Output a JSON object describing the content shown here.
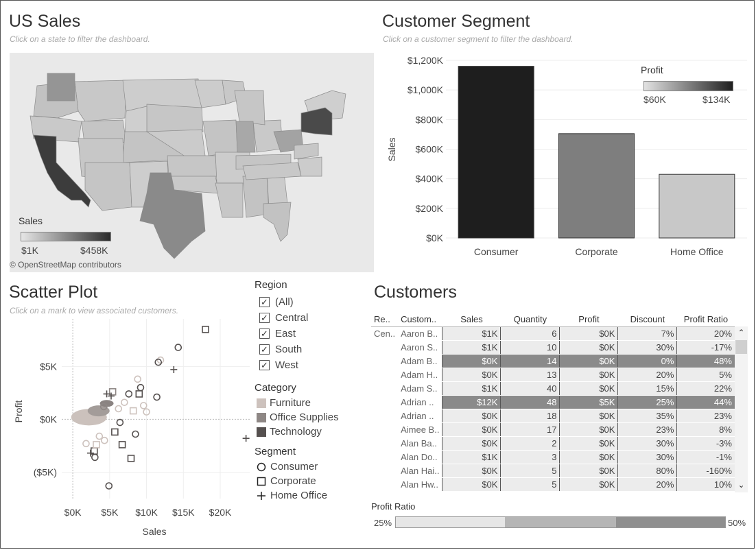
{
  "us_sales": {
    "title": "US Sales",
    "subtitle": "Click on a state to filter the dashboard.",
    "legend_title": "Sales",
    "legend_min": "$1K",
    "legend_max": "$458K",
    "attribution": "© OpenStreetMap contributors"
  },
  "segment": {
    "title": "Customer Segment",
    "subtitle": "Click on a customer segment to filter the dashboard.",
    "legend_title": "Profit",
    "legend_min": "$60K",
    "legend_max": "$134K"
  },
  "scatter": {
    "title": "Scatter Plot",
    "subtitle": "Click on a mark to view associated customers."
  },
  "filters": {
    "region_title": "Region",
    "regions": [
      "(All)",
      "Central",
      "East",
      "South",
      "West"
    ],
    "category_title": "Category",
    "categories": [
      {
        "label": "Furniture",
        "color": "#cdc2bd"
      },
      {
        "label": "Office Supplies",
        "color": "#8e8785"
      },
      {
        "label": "Technology",
        "color": "#55504f"
      }
    ],
    "segment_title": "Segment",
    "segments": [
      {
        "label": "Consumer",
        "shape": "circle"
      },
      {
        "label": "Corporate",
        "shape": "square"
      },
      {
        "label": "Home Office",
        "shape": "plus"
      }
    ]
  },
  "customers": {
    "title": "Customers",
    "headers": [
      "Re..",
      "Custom..",
      "Sales",
      "Quantity",
      "Profit",
      "Discount",
      "Profit Ratio"
    ],
    "region_cell": "Cen..",
    "rows": [
      {
        "name": "Aaron B..",
        "sales": "$1K",
        "qty": "6",
        "profit": "$0K",
        "disc": "7%",
        "ratio": "20%",
        "hl": false
      },
      {
        "name": "Aaron S..",
        "sales": "$1K",
        "qty": "10",
        "profit": "$0K",
        "disc": "30%",
        "ratio": "-17%",
        "hl": false
      },
      {
        "name": "Adam B..",
        "sales": "$0K",
        "qty": "14",
        "profit": "$0K",
        "disc": "0%",
        "ratio": "48%",
        "hl": true
      },
      {
        "name": "Adam H..",
        "sales": "$0K",
        "qty": "13",
        "profit": "$0K",
        "disc": "20%",
        "ratio": "5%",
        "hl": false
      },
      {
        "name": "Adam S..",
        "sales": "$1K",
        "qty": "40",
        "profit": "$0K",
        "disc": "15%",
        "ratio": "22%",
        "hl": false
      },
      {
        "name": "Adrian ..",
        "sales": "$12K",
        "qty": "48",
        "profit": "$5K",
        "disc": "25%",
        "ratio": "44%",
        "hl": true
      },
      {
        "name": "Adrian ..",
        "sales": "$0K",
        "qty": "18",
        "profit": "$0K",
        "disc": "35%",
        "ratio": "23%",
        "hl": false
      },
      {
        "name": "Aimee B..",
        "sales": "$0K",
        "qty": "17",
        "profit": "$0K",
        "disc": "23%",
        "ratio": "8%",
        "hl": false
      },
      {
        "name": "Alan Ba..",
        "sales": "$0K",
        "qty": "2",
        "profit": "$0K",
        "disc": "30%",
        "ratio": "-3%",
        "hl": false
      },
      {
        "name": "Alan Do..",
        "sales": "$1K",
        "qty": "3",
        "profit": "$0K",
        "disc": "30%",
        "ratio": "-1%",
        "hl": false
      },
      {
        "name": "Alan Hai..",
        "sales": "$0K",
        "qty": "5",
        "profit": "$0K",
        "disc": "80%",
        "ratio": "-160%",
        "hl": false
      },
      {
        "name": "Alan Hw..",
        "sales": "$0K",
        "qty": "5",
        "profit": "$0K",
        "disc": "20%",
        "ratio": "10%",
        "hl": false
      }
    ]
  },
  "profit_ratio": {
    "title": "Profit Ratio",
    "min_label": "25%",
    "max_label": "50%"
  },
  "chart_data": [
    {
      "type": "bar",
      "categories": [
        "Consumer",
        "Corporate",
        "Home Office"
      ],
      "values": [
        1160,
        705,
        430
      ],
      "value_units": "$K",
      "fill_by_profit": [
        134,
        92,
        60
      ],
      "ylabel": "Sales",
      "yticks": [
        "$0K",
        "$200K",
        "$400K",
        "$600K",
        "$800K",
        "$1,000K",
        "$1,200K"
      ],
      "ylim": [
        0,
        1200
      ],
      "grid": true,
      "legend": "top-right"
    },
    {
      "type": "scatter",
      "xlabel": "Sales",
      "ylabel": "Profit",
      "xticks": [
        "$0K",
        "$5K",
        "$10K",
        "$15K",
        "$20K"
      ],
      "yticks": [
        "($5K)",
        "$0K",
        "$5K"
      ],
      "xlim": [
        -1.5,
        24
      ],
      "ylim": [
        -7.5,
        9.5
      ],
      "points": [
        {
          "x": 18,
          "y": 8.5,
          "s": "square",
          "c": "Technology"
        },
        {
          "x": 14.3,
          "y": 6.8,
          "s": "circle",
          "c": "Technology"
        },
        {
          "x": 13.7,
          "y": 4.7,
          "s": "plus",
          "c": "Technology"
        },
        {
          "x": 11.9,
          "y": 5.6,
          "s": "circle",
          "c": "Furniture"
        },
        {
          "x": 11.6,
          "y": 5.4,
          "s": "circle",
          "c": "Technology"
        },
        {
          "x": 8.8,
          "y": 3.8,
          "s": "circle",
          "c": "Furniture"
        },
        {
          "x": 9.2,
          "y": 3.0,
          "s": "circle",
          "c": "Technology"
        },
        {
          "x": 9.0,
          "y": 2.4,
          "s": "square",
          "c": "Technology"
        },
        {
          "x": 7.6,
          "y": 2.4,
          "s": "circle",
          "c": "Technology"
        },
        {
          "x": 11.4,
          "y": 2.1,
          "s": "circle",
          "c": "Technology"
        },
        {
          "x": 9.6,
          "y": 1.3,
          "s": "circle",
          "c": "Furniture"
        },
        {
          "x": 10.0,
          "y": 0.7,
          "s": "circle",
          "c": "Furniture"
        },
        {
          "x": 8.2,
          "y": 0.8,
          "s": "square",
          "c": "Furniture"
        },
        {
          "x": 23.5,
          "y": -1.8,
          "s": "plus",
          "c": "Technology"
        },
        {
          "x": 8.5,
          "y": -1.4,
          "s": "circle",
          "c": "Technology"
        },
        {
          "x": 6.7,
          "y": -2.4,
          "s": "square",
          "c": "Technology"
        },
        {
          "x": 7.9,
          "y": -3.7,
          "s": "square",
          "c": "Technology"
        },
        {
          "x": 2.9,
          "y": -3.0,
          "s": "square",
          "c": "Technology"
        },
        {
          "x": 2.4,
          "y": -3.2,
          "s": "plus",
          "c": "Technology"
        },
        {
          "x": 3.0,
          "y": -3.6,
          "s": "circle",
          "c": "Technology"
        },
        {
          "x": 4.9,
          "y": -6.3,
          "s": "circle",
          "c": "Technology"
        },
        {
          "x": 5.7,
          "y": -1.2,
          "s": "square",
          "c": "Technology"
        },
        {
          "x": 6.4,
          "y": -0.3,
          "s": "circle",
          "c": "Technology"
        },
        {
          "x": 4.2,
          "y": 1.2,
          "s": "circle",
          "c": "Office Supplies"
        },
        {
          "x": 5.4,
          "y": 2.6,
          "s": "square",
          "c": "Office Supplies"
        },
        {
          "x": 5.2,
          "y": 2.2,
          "s": "plus",
          "c": "Technology"
        },
        {
          "x": 4.6,
          "y": 2.4,
          "s": "plus",
          "c": "Technology"
        },
        {
          "x": 6.2,
          "y": 1.0,
          "s": "circle",
          "c": "Furniture"
        },
        {
          "x": 7.0,
          "y": 1.6,
          "s": "circle",
          "c": "Furniture"
        },
        {
          "x": 3.6,
          "y": -1.6,
          "s": "circle",
          "c": "Furniture"
        },
        {
          "x": 1.8,
          "y": -2.3,
          "s": "circle",
          "c": "Furniture"
        },
        {
          "x": 3.2,
          "y": -2.4,
          "s": "square",
          "c": "Furniture"
        },
        {
          "x": 4.3,
          "y": -2.0,
          "s": "circle",
          "c": "Furniture"
        }
      ]
    },
    {
      "type": "bar",
      "title": "Profit Ratio",
      "segments": [
        {
          "from": 25,
          "to": 33.3,
          "color": "#e6e6e6"
        },
        {
          "from": 33.3,
          "to": 41.7,
          "color": "#b5b5b5"
        },
        {
          "from": 41.7,
          "to": 50,
          "color": "#8f8f8f"
        }
      ],
      "xlim": [
        25,
        50
      ]
    }
  ]
}
